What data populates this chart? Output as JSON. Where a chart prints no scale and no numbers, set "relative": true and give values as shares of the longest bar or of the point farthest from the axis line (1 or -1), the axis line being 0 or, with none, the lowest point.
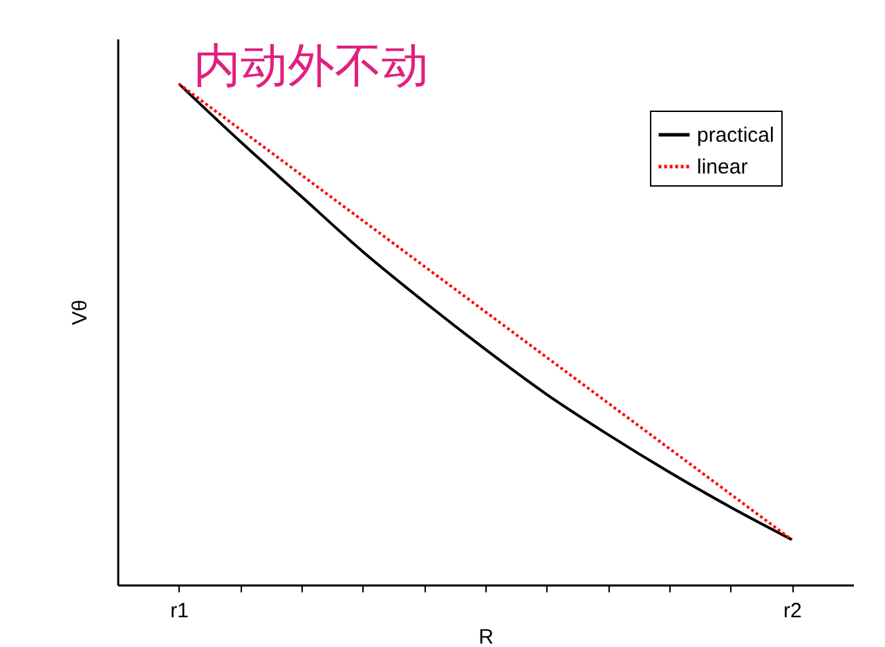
{
  "chart_data": {
    "type": "line",
    "title": "内动外不动",
    "xlabel": "R",
    "ylabel": "Vθ",
    "relative": true,
    "legend": "top right",
    "categories": [
      "r1",
      null,
      null,
      null,
      null,
      null,
      null,
      null,
      null,
      null,
      "r2"
    ],
    "series": [
      {
        "name": "practical",
        "color": "#000000",
        "line_style": "solid",
        "values": [
          1,
          0.885,
          0.775,
          0.665,
          0.565,
          0.47,
          0.38,
          0.3,
          0.225,
          0.155,
          0.09
        ]
      },
      {
        "name": "linear",
        "color": "#ff0000",
        "line_style": "dotted",
        "values": [
          1,
          0.909,
          0.818,
          0.727,
          0.636,
          0.545,
          0.454,
          0.363,
          0.272,
          0.181,
          0.09
        ]
      }
    ]
  }
}
